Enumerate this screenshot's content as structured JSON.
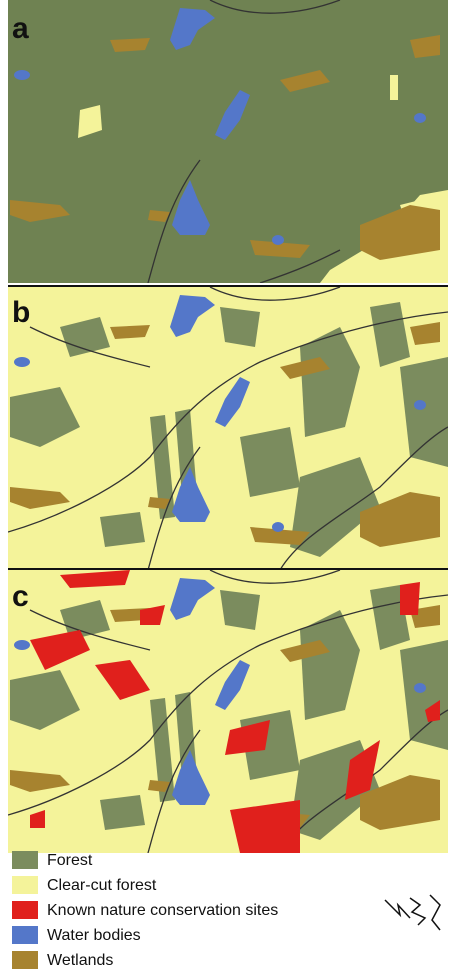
{
  "panels": [
    {
      "label": "a"
    },
    {
      "label": "b"
    },
    {
      "label": "c"
    }
  ],
  "legend": [
    {
      "label": "Forest",
      "color": "#7b8c5e"
    },
    {
      "label": "Clear-cut forest",
      "color": "#f4f39a"
    },
    {
      "label": "Known nature conservation sites",
      "color": "#e0201c"
    },
    {
      "label": "Water bodies",
      "color": "#5477c9"
    },
    {
      "label": "Wetlands",
      "color": "#a7832f"
    }
  ]
}
